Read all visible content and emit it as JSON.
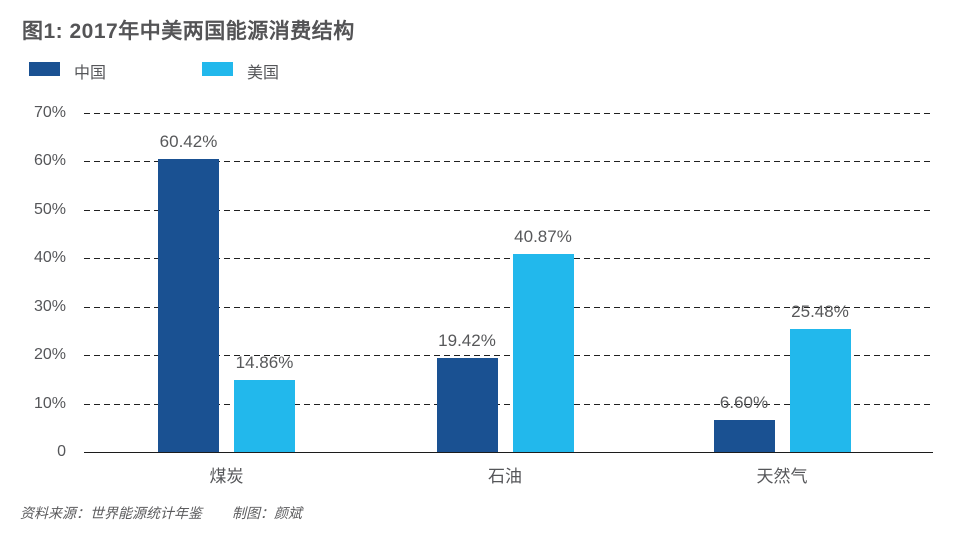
{
  "title": "图1: 2017年中美两国能源消费结构",
  "legend": [
    {
      "label": "中国",
      "color": "#1A5192"
    },
    {
      "label": "美国",
      "color": "#22B8EC"
    }
  ],
  "chart_data": {
    "type": "bar",
    "title": "图1: 2017年中美两国能源消费结构",
    "categories": [
      "煤炭",
      "石油",
      "天然气"
    ],
    "series": [
      {
        "name": "中国",
        "color": "#1A5192",
        "values": [
          60.42,
          19.42,
          6.6
        ],
        "value_labels": [
          "60.42%",
          "19.42%",
          "6.60%"
        ]
      },
      {
        "name": "美国",
        "color": "#22B8EC",
        "values": [
          14.86,
          40.87,
          25.48
        ],
        "value_labels": [
          "14.86%",
          "40.87%",
          "25.48%"
        ]
      }
    ],
    "ylim": [
      0,
      70
    ],
    "yticks": [
      {
        "value": 70,
        "label": "70%"
      },
      {
        "value": 60,
        "label": "60%"
      },
      {
        "value": 50,
        "label": "50%"
      },
      {
        "value": 40,
        "label": "40%"
      },
      {
        "value": 30,
        "label": "30%"
      },
      {
        "value": 20,
        "label": "20%"
      },
      {
        "value": 10,
        "label": "10%"
      },
      {
        "value": 0,
        "label": "0"
      }
    ],
    "grid": "horizontal-dashed",
    "legend_position": "top-left"
  },
  "footer": {
    "source": "资料来源：世界能源统计年鉴",
    "credit": "制图：颜斌"
  }
}
